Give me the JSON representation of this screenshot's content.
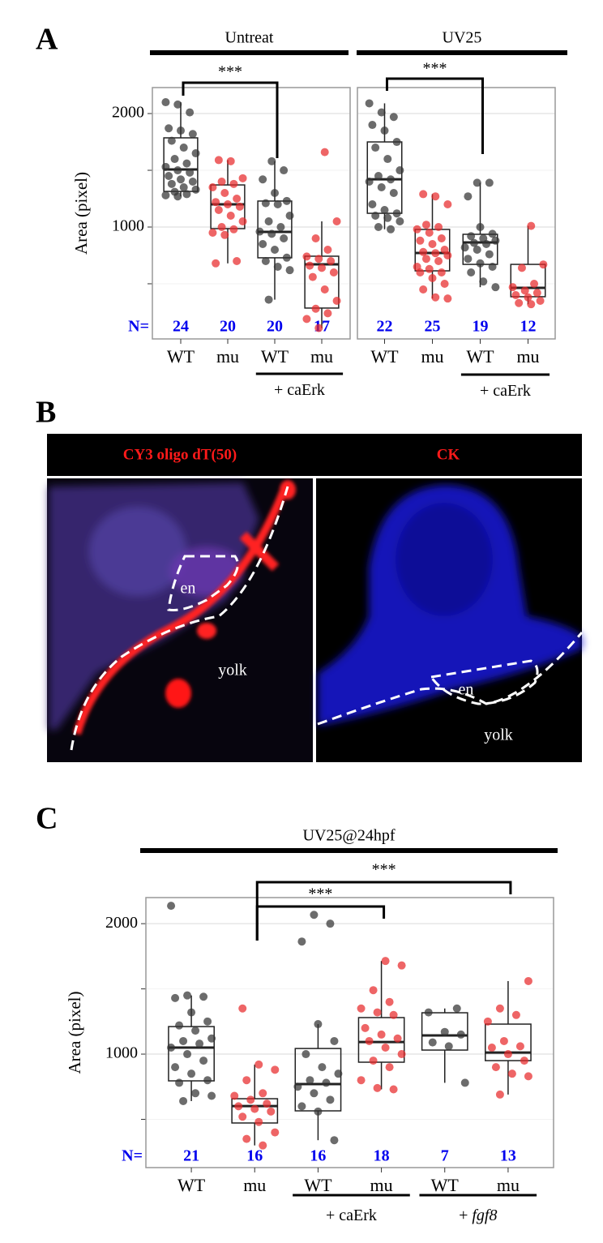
{
  "panel_labels": [
    "A",
    "B",
    "C"
  ],
  "chart_data": [
    {
      "type": "box",
      "facet_title": "Untreat",
      "ylabel": "Area (pixel)",
      "y_axis_labels": true,
      "grid": true,
      "ylim": [
        14,
        2229
      ],
      "yticks": [
        1000,
        2000
      ],
      "minor_yticks": [
        500,
        1500
      ],
      "categories": [
        "WT",
        "mu",
        "WT",
        "mu"
      ],
      "colors": [
        "#333333",
        "#e8292b",
        "#333333",
        "#e8292b"
      ],
      "n_label": "N=",
      "n": [
        24,
        20,
        20,
        17
      ],
      "boxes": [
        {
          "low": 1270,
          "q1": 1314,
          "median": 1507,
          "q3": 1786,
          "high": 2100
        },
        {
          "low": 680,
          "q1": 986,
          "median": 1200,
          "q3": 1371,
          "high": 1590
        },
        {
          "low": 360,
          "q1": 729,
          "median": 957,
          "q3": 1229,
          "high": 1580
        },
        {
          "low": 110,
          "q1": 286,
          "median": 671,
          "q3": 743,
          "high": 1050
        }
      ],
      "points": [
        [
          2100,
          2080,
          2010,
          1870,
          1850,
          1820,
          1760,
          1700,
          1650,
          1600,
          1560,
          1530,
          1500,
          1480,
          1450,
          1420,
          1400,
          1380,
          1350,
          1330,
          1310,
          1290,
          1280,
          1270
        ],
        [
          1590,
          1580,
          1430,
          1400,
          1380,
          1350,
          1300,
          1250,
          1220,
          1200,
          1180,
          1150,
          1100,
          1050,
          1000,
          980,
          950,
          930,
          700,
          680
        ],
        [
          1580,
          1500,
          1420,
          1300,
          1230,
          1210,
          1200,
          1100,
          1050,
          1000,
          960,
          940,
          900,
          850,
          800,
          730,
          700,
          650,
          620,
          360
        ],
        [
          1660,
          1050,
          900,
          800,
          740,
          720,
          700,
          660,
          640,
          600,
          560,
          450,
          350,
          280,
          240,
          190,
          110
        ]
      ],
      "groups": [
        {
          "label_parts": [
            "+ caErk"
          ],
          "italic": [
            false
          ],
          "from": 2,
          "to": 3
        }
      ],
      "significance": [
        {
          "from": 0,
          "to": 2,
          "label": "***"
        }
      ]
    },
    {
      "type": "box",
      "facet_title": "UV25",
      "y_axis_labels": false,
      "grid": true,
      "ylim": [
        14,
        2229
      ],
      "yticks": [
        1000,
        2000
      ],
      "minor_yticks": [
        500,
        1500
      ],
      "categories": [
        "WT",
        "mu",
        "WT",
        "mu"
      ],
      "colors": [
        "#333333",
        "#e8292b",
        "#333333",
        "#e8292b"
      ],
      "n": [
        22,
        25,
        19,
        12
      ],
      "boxes": [
        {
          "low": 980,
          "q1": 1121,
          "median": 1421,
          "q3": 1750,
          "high": 2090
        },
        {
          "low": 370,
          "q1": 614,
          "median": 771,
          "q3": 979,
          "high": 1290
        },
        {
          "low": 470,
          "q1": 671,
          "median": 864,
          "q3": 936,
          "high": 1390
        },
        {
          "low": 320,
          "q1": 386,
          "median": 464,
          "q3": 671,
          "high": 1010
        }
      ],
      "points": [
        [
          2090,
          2010,
          1970,
          1900,
          1850,
          1750,
          1700,
          1600,
          1500,
          1450,
          1420,
          1400,
          1350,
          1300,
          1200,
          1150,
          1120,
          1100,
          1080,
          1050,
          1000,
          980
        ],
        [
          1290,
          1270,
          1200,
          1020,
          1000,
          980,
          950,
          900,
          880,
          850,
          800,
          780,
          770,
          750,
          720,
          700,
          650,
          630,
          600,
          600,
          550,
          500,
          450,
          380,
          370
        ],
        [
          1390,
          1390,
          1270,
          1000,
          940,
          920,
          900,
          880,
          860,
          850,
          820,
          800,
          760,
          720,
          680,
          650,
          600,
          520,
          470
        ],
        [
          1010,
          670,
          640,
          500,
          470,
          440,
          420,
          400,
          380,
          350,
          330,
          320
        ]
      ],
      "groups": [
        {
          "label_parts": [
            "+ caErk"
          ],
          "italic": [
            false
          ],
          "from": 2,
          "to": 3
        }
      ],
      "significance": [
        {
          "from": 0,
          "to": 2,
          "label": "***"
        }
      ]
    },
    {
      "type": "box",
      "facet_title": "UV25@24hpf",
      "ylabel": "Area (pixel)",
      "y_axis_labels": true,
      "grid": true,
      "ylim": [
        130,
        2200
      ],
      "yticks": [
        1000,
        2000
      ],
      "minor_yticks": [
        500,
        1500
      ],
      "categories": [
        "WT",
        "mu",
        "WT",
        "mu",
        "WT",
        "mu"
      ],
      "colors": [
        "#333333",
        "#e8292b",
        "#333333",
        "#e8292b",
        "#333333",
        "#e8292b"
      ],
      "n_label": "N=",
      "n": [
        21,
        16,
        16,
        18,
        7,
        13
      ],
      "boxes": [
        {
          "low": 640,
          "q1": 795,
          "median": 1050,
          "q3": 1211,
          "high": 1450
        },
        {
          "low": 300,
          "q1": 472,
          "median": 602,
          "q3": 658,
          "high": 920
        },
        {
          "low": 340,
          "q1": 565,
          "median": 770,
          "q3": 1043,
          "high": 1230
        },
        {
          "low": 730,
          "q1": 938,
          "median": 1093,
          "q3": 1280,
          "high": 1714
        },
        {
          "low": 780,
          "q1": 1031,
          "median": 1143,
          "q3": 1317,
          "high": 1350
        },
        {
          "low": 690,
          "q1": 950,
          "median": 1012,
          "q3": 1230,
          "high": 1560
        }
      ],
      "points": [
        [
          2137,
          1450,
          1440,
          1430,
          1320,
          1250,
          1220,
          1180,
          1120,
          1100,
          1080,
          1050,
          1000,
          950,
          900,
          850,
          800,
          780,
          700,
          680,
          640
        ],
        [
          1350,
          920,
          880,
          800,
          700,
          680,
          650,
          620,
          600,
          580,
          560,
          520,
          480,
          400,
          350,
          300
        ],
        [
          2068,
          2000,
          1863,
          1230,
          1100,
          1000,
          900,
          850,
          800,
          780,
          750,
          700,
          650,
          600,
          560,
          340
        ],
        [
          1714,
          1680,
          1490,
          1400,
          1350,
          1320,
          1300,
          1200,
          1150,
          1120,
          1100,
          1050,
          1000,
          950,
          900,
          800,
          740,
          730
        ],
        [
          1350,
          1320,
          1170,
          1150,
          1090,
          1060,
          780
        ],
        [
          1560,
          1350,
          1300,
          1250,
          1100,
          1060,
          1050,
          1000,
          950,
          900,
          850,
          830,
          690
        ]
      ],
      "groups": [
        {
          "label_parts": [
            "+ caErk"
          ],
          "italic": [
            false
          ],
          "from": 2,
          "to": 3
        },
        {
          "label_parts": [
            "+ ",
            "fgf8"
          ],
          "italic": [
            false,
            true
          ],
          "from": 4,
          "to": 5
        }
      ],
      "significance": [
        {
          "from": 1,
          "to": 3,
          "label": "***"
        },
        {
          "from": 1,
          "to": 5,
          "label": "***"
        }
      ]
    }
  ],
  "micrographs": {
    "headers": [
      "CY3 oligo dT(50)",
      "CK"
    ],
    "labels": [
      [
        "en",
        "yolk"
      ],
      [
        "en",
        "yolk"
      ]
    ]
  }
}
